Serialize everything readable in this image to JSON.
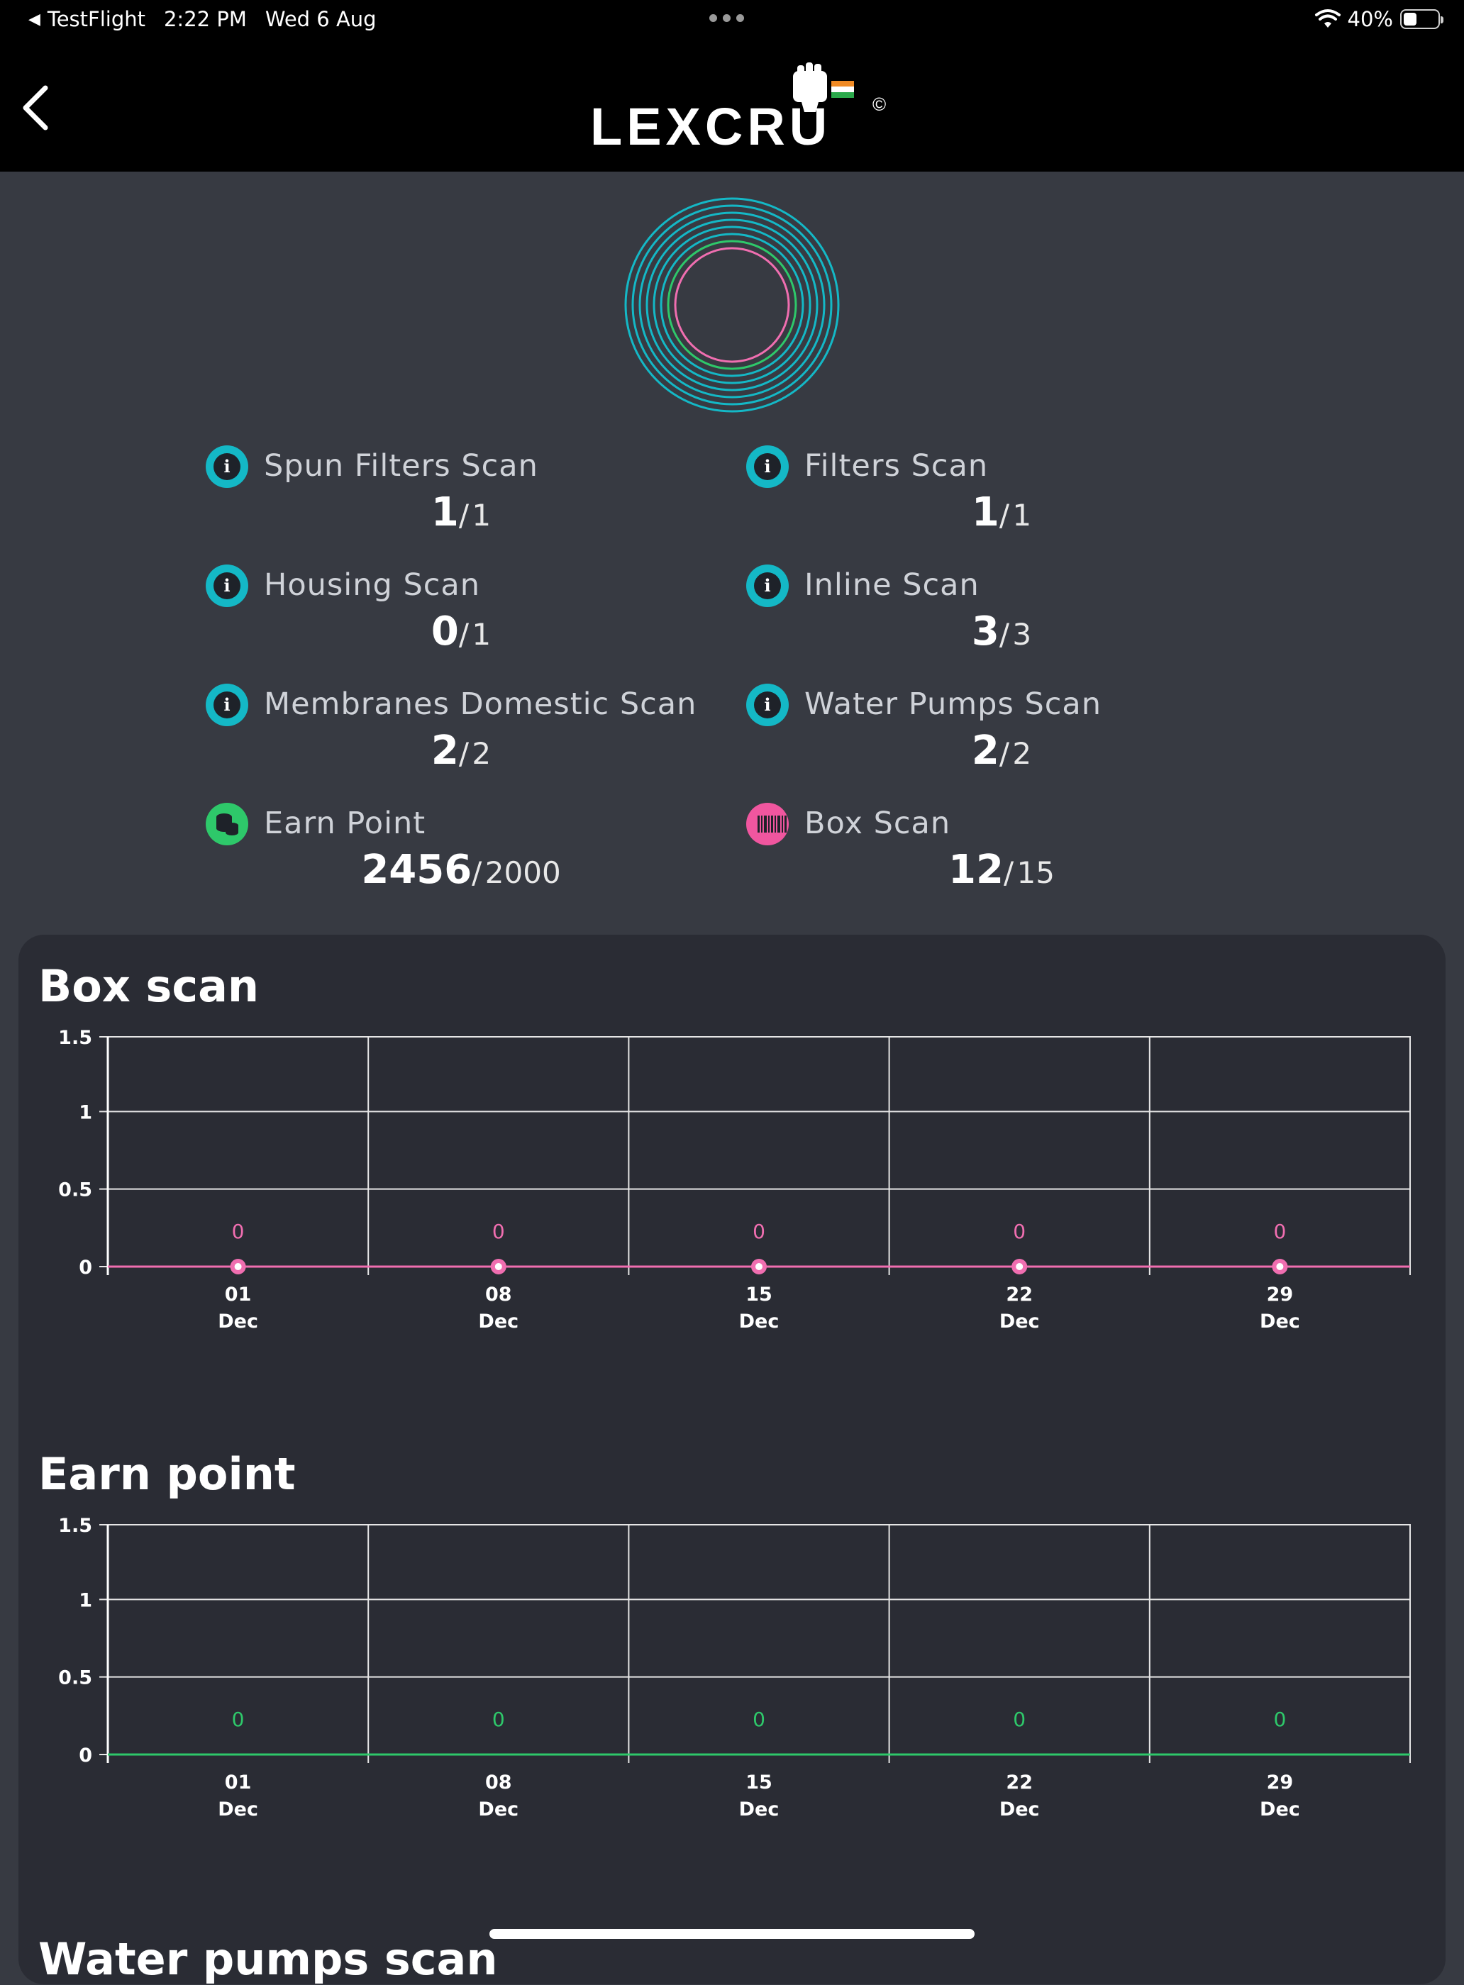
{
  "status_bar": {
    "back_app": "TestFlight",
    "time": "2:22 PM",
    "date": "Wed 6 Aug",
    "battery_percent": "40%",
    "battery_level": 0.4
  },
  "header": {
    "logo_text": "LEXCRU",
    "logo_mark": "©"
  },
  "stats": [
    {
      "label": "Spun Filters Scan",
      "current": "1",
      "total": "1",
      "icon": "info-icon"
    },
    {
      "label": "Filters Scan",
      "current": "1",
      "total": "1",
      "icon": "info-icon"
    },
    {
      "label": "Housing Scan",
      "current": "0",
      "total": "1",
      "icon": "info-icon"
    },
    {
      "label": "Inline Scan",
      "current": "3",
      "total": "3",
      "icon": "info-icon"
    },
    {
      "label": "Membranes Domestic Scan",
      "current": "2",
      "total": "2",
      "icon": "info-icon"
    },
    {
      "label": "Water Pumps Scan",
      "current": "2",
      "total": "2",
      "icon": "info-icon"
    },
    {
      "label": "Earn Point",
      "current": "2456",
      "total": "2000",
      "icon": "coins-icon"
    },
    {
      "label": "Box Scan",
      "current": "12",
      "total": "15",
      "icon": "barcode-icon"
    }
  ],
  "colors": {
    "accent_teal": "#14b8c6",
    "accent_pink": "#f06eb0",
    "accent_green": "#2ec86a",
    "panel_bg": "#2a2c34",
    "page_bg": "#373a42"
  },
  "chart_data": [
    {
      "type": "line",
      "title": "Box scan",
      "categories": [
        "01\nDec",
        "08\nDec",
        "15\nDec",
        "22\nDec",
        "29\nDec"
      ],
      "category_day": [
        "01",
        "08",
        "15",
        "22",
        "29"
      ],
      "category_month": [
        "Dec",
        "Dec",
        "Dec",
        "Dec",
        "Dec"
      ],
      "series": [
        {
          "values": [
            0,
            0,
            0,
            0,
            0
          ],
          "color": "#f06eb0"
        }
      ],
      "data_labels": [
        "0",
        "0",
        "0",
        "0",
        "0"
      ],
      "yticks": [
        "1.5",
        "1",
        "0.5",
        "0"
      ],
      "ylim": [
        0,
        1.5
      ],
      "grid": true,
      "markers": true
    },
    {
      "type": "line",
      "title": "Earn point",
      "categories": [
        "01\nDec",
        "08\nDec",
        "15\nDec",
        "22\nDec",
        "29\nDec"
      ],
      "category_day": [
        "01",
        "08",
        "15",
        "22",
        "29"
      ],
      "category_month": [
        "Dec",
        "Dec",
        "Dec",
        "Dec",
        "Dec"
      ],
      "series": [
        {
          "values": [
            0,
            0,
            0,
            0,
            0
          ],
          "color": "#2ec86a"
        }
      ],
      "data_labels": [
        "0",
        "0",
        "0",
        "0",
        "0"
      ],
      "yticks": [
        "1.5",
        "1",
        "0.5",
        "0"
      ],
      "ylim": [
        0,
        1.5
      ],
      "grid": true,
      "markers": false
    }
  ],
  "next_section_title": "Water pumps scan"
}
